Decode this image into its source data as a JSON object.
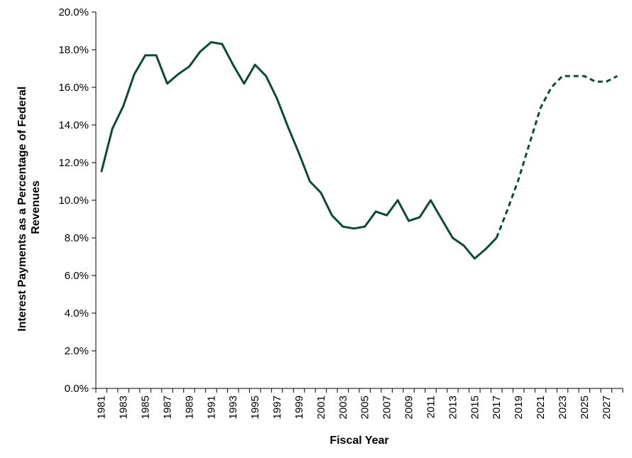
{
  "chart_data": {
    "type": "line",
    "title": "",
    "xlabel": "Fiscal Year",
    "ylabel_lines": [
      "Interest Payments as a Percentage of Federal",
      "Revenues"
    ],
    "ylim": [
      0,
      20
    ],
    "yticks": [
      "0.0%",
      "2.0%",
      "4.0%",
      "6.0%",
      "8.0%",
      "10.0%",
      "12.0%",
      "14.0%",
      "16.0%",
      "18.0%",
      "20.0%"
    ],
    "xticks": [
      "1981",
      "1983",
      "1985",
      "1987",
      "1989",
      "1991",
      "1993",
      "1995",
      "1997",
      "1999",
      "2001",
      "2003",
      "2005",
      "2007",
      "2009",
      "2011",
      "2013",
      "2015",
      "2017",
      "2019",
      "2021",
      "2023",
      "2025",
      "2027"
    ],
    "line_color": "#0d4a37",
    "series": [
      {
        "style": "solid",
        "x": [
          1981,
          1982,
          1983,
          1984,
          1985,
          1986,
          1987,
          1988,
          1989,
          1990,
          1991,
          1992,
          1993,
          1994,
          1995,
          1996,
          1997,
          1998,
          1999,
          2000,
          2001,
          2002,
          2003,
          2004,
          2005,
          2006,
          2007,
          2008,
          2009,
          2010,
          2011,
          2012,
          2013,
          2014,
          2015,
          2016,
          2017
        ],
        "values": [
          11.5,
          13.8,
          15.0,
          16.7,
          17.7,
          17.7,
          16.2,
          16.7,
          17.1,
          17.9,
          18.4,
          18.3,
          17.2,
          16.2,
          17.2,
          16.6,
          15.4,
          13.9,
          12.5,
          11.0,
          10.4,
          9.2,
          8.6,
          8.5,
          8.6,
          9.4,
          9.2,
          10.0,
          8.9,
          9.1,
          10.0,
          9.0,
          8.0,
          7.6,
          6.9,
          7.4,
          8.0
        ]
      },
      {
        "style": "dashed",
        "x": [
          2017,
          2018,
          2019,
          2020,
          2021,
          2022,
          2023,
          2024,
          2025,
          2026,
          2027,
          2028
        ],
        "values": [
          8.0,
          9.5,
          11.1,
          13.0,
          14.9,
          16.0,
          16.6,
          16.6,
          16.6,
          16.3,
          16.3,
          16.6
        ]
      }
    ],
    "grid": false,
    "legend": "none"
  }
}
